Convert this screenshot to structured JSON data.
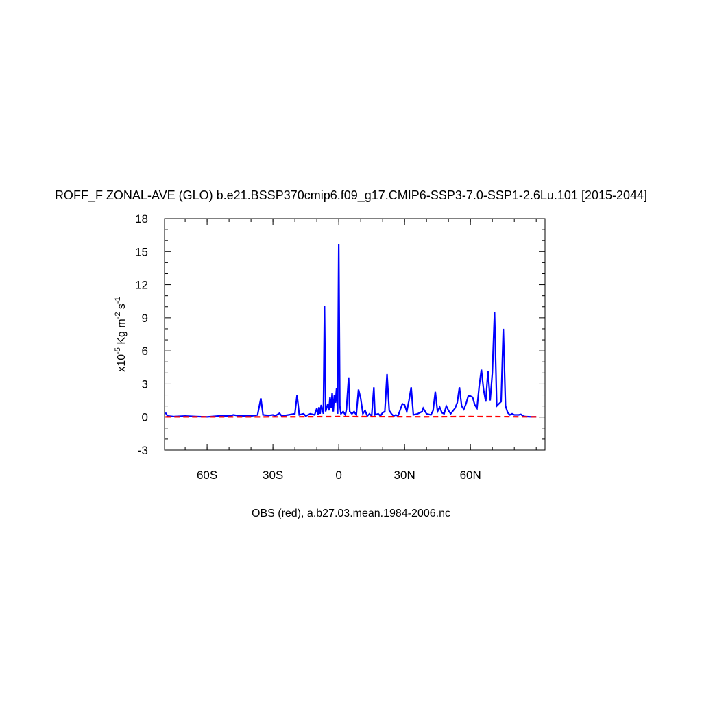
{
  "chart_data": {
    "type": "line",
    "title": "ROFF_F ZONAL-AVE (GLO) b.e21.BSSP370cmip6.f09_g17.CMIP6-SSP3-7.0-SSP1-2.6Lu.101 [2015-2044]",
    "subtitle": "OBS (red), a.b27.03.mean.1984-2006.nc",
    "ylabel_parts": [
      "x10",
      "-5",
      " Kg m",
      "-2",
      " s",
      "-1"
    ],
    "xlim": [
      -79.4,
      94
    ],
    "ylim": [
      -3,
      18
    ],
    "xticks": [
      {
        "value": -60,
        "label": "60S"
      },
      {
        "value": -30,
        "label": "30S"
      },
      0,
      {
        "value": 30,
        "label": "30N"
      },
      {
        "value": 60,
        "label": "60N"
      }
    ],
    "yticks": [
      -3,
      0,
      3,
      6,
      9,
      12,
      15,
      18
    ],
    "series": [
      {
        "color": "#0000ff",
        "dash": false,
        "x": [
          -79,
          -78,
          -75,
          -70,
          -65,
          -60,
          -55,
          -50,
          -48,
          -45,
          -40,
          -37,
          -35.5,
          -34.5,
          -32,
          -30,
          -29,
          -27,
          -26,
          -23,
          -20,
          -19,
          -18,
          -16,
          -15,
          -13,
          -11,
          -10,
          -9.5,
          -9,
          -8.5,
          -8,
          -7,
          -6.5,
          -6,
          -5,
          -4.5,
          -4,
          -3.5,
          -3,
          -2.5,
          -2,
          -1.5,
          -1,
          -0.5,
          0,
          0.5,
          1,
          2,
          3,
          3.5,
          4.5,
          5,
          6,
          7,
          8,
          9,
          10,
          11,
          12,
          13,
          14,
          15,
          16,
          16.5,
          18,
          19,
          20,
          21,
          22,
          23,
          24,
          25,
          26,
          27,
          29,
          30,
          31,
          32,
          33,
          34,
          36,
          38,
          38.5,
          40,
          42,
          43,
          44,
          45,
          46,
          47,
          48,
          49,
          50,
          51,
          53,
          54,
          55,
          56,
          57,
          58,
          59,
          60,
          61,
          62,
          63,
          64,
          65,
          66,
          67,
          68,
          69,
          70,
          71,
          72,
          73,
          74,
          75,
          76,
          77,
          78,
          79,
          80,
          82,
          83,
          84,
          85,
          88,
          90
        ],
        "values": [
          0.4,
          0.1,
          0.05,
          0.1,
          0.05,
          0.02,
          0.1,
          0.1,
          0.2,
          0.1,
          0.1,
          0.2,
          1.7,
          0.2,
          0.15,
          0.2,
          0.1,
          0.35,
          0.1,
          0.2,
          0.3,
          2.0,
          0.2,
          0.3,
          0.1,
          0.3,
          0.2,
          0.8,
          0.2,
          0.9,
          0.3,
          1.1,
          0.3,
          10.1,
          0.5,
          1.2,
          0.6,
          1.8,
          0.8,
          2.2,
          0.5,
          2.0,
          1.3,
          2.6,
          0.3,
          15.7,
          1.0,
          0.3,
          0.5,
          0.2,
          0.7,
          3.6,
          0.5,
          0.3,
          0.5,
          0.2,
          2.5,
          1.7,
          0.3,
          0.6,
          0.1,
          0.3,
          0.1,
          2.7,
          0.2,
          0.3,
          0.1,
          0.4,
          0.5,
          3.9,
          0.6,
          0.3,
          0.1,
          0.2,
          0.1,
          1.2,
          1.1,
          0.5,
          1.5,
          2.7,
          0.2,
          0.3,
          0.5,
          0.8,
          0.3,
          0.2,
          0.6,
          2.3,
          0.5,
          0.9,
          0.4,
          0.3,
          1.0,
          0.6,
          0.3,
          0.8,
          1.3,
          2.7,
          1.0,
          0.7,
          1.2,
          1.9,
          1.9,
          1.8,
          1.1,
          0.8,
          2.8,
          4.3,
          2.5,
          1.4,
          4.2,
          1.5,
          4.0,
          9.5,
          1.0,
          1.2,
          1.4,
          8.0,
          1.0,
          0.4,
          0.2,
          0.3,
          0.2,
          0.2,
          0.25,
          0.1,
          0.05,
          0.02,
          0.02
        ]
      },
      {
        "color": "#ff0000",
        "dash": true,
        "x": [
          -79,
          -60,
          -40,
          -20,
          0,
          20,
          40,
          60,
          75,
          90
        ],
        "values": [
          0.02,
          0.02,
          0.02,
          0.03,
          0.05,
          0.04,
          0.03,
          0.05,
          0.04,
          0.02
        ]
      }
    ]
  }
}
